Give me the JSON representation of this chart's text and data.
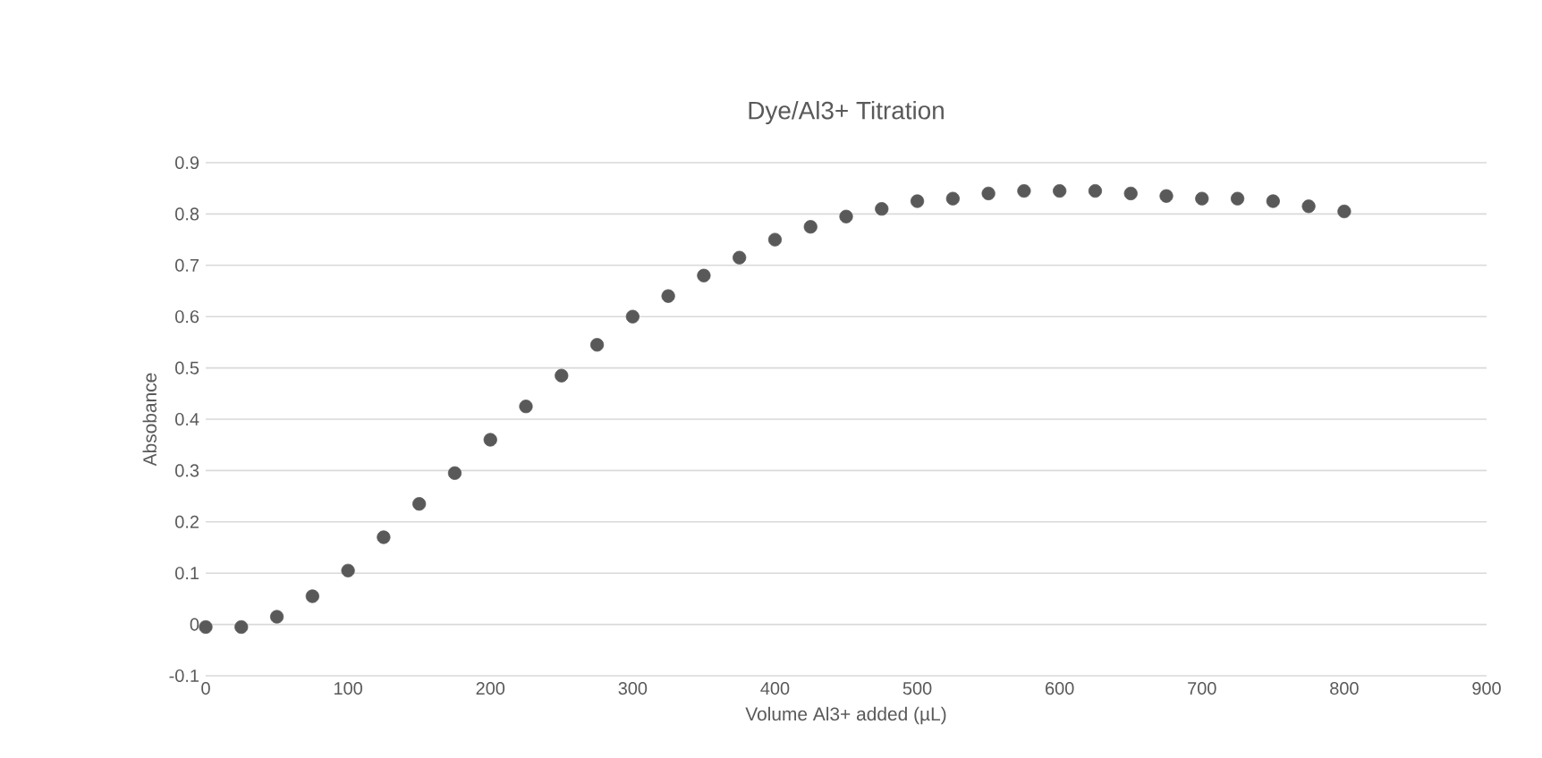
{
  "chart_data": {
    "type": "scatter",
    "title": "Dye/Al3+ Titration",
    "xlabel": "Volume Al3+ added (µL)",
    "ylabel": "Absobance",
    "x": [
      0,
      25,
      50,
      75,
      100,
      125,
      150,
      175,
      200,
      225,
      250,
      275,
      300,
      325,
      350,
      375,
      400,
      425,
      450,
      475,
      500,
      525,
      550,
      575,
      600,
      625,
      650,
      675,
      700,
      725,
      750,
      775,
      800
    ],
    "series": [
      {
        "color": "#595959",
        "values": [
          -0.005,
          -0.005,
          0.015,
          0.055,
          0.105,
          0.17,
          0.235,
          0.295,
          0.36,
          0.425,
          0.485,
          0.545,
          0.6,
          0.64,
          0.68,
          0.715,
          0.75,
          0.775,
          0.795,
          0.81,
          0.825,
          0.83,
          0.84,
          0.845,
          0.845,
          0.845,
          0.84,
          0.835,
          0.83,
          0.83,
          0.825,
          0.815,
          0.805
        ]
      }
    ],
    "xlim": [
      0,
      900
    ],
    "ylim": [
      -0.1,
      0.9
    ],
    "xticks": [
      0,
      100,
      200,
      300,
      400,
      500,
      600,
      700,
      800,
      900
    ],
    "yticks": [
      -0.1,
      0,
      0.1,
      0.2,
      0.3,
      0.4,
      0.5,
      0.6,
      0.7,
      0.8,
      0.9
    ],
    "grid": "y",
    "marker": "circle"
  }
}
